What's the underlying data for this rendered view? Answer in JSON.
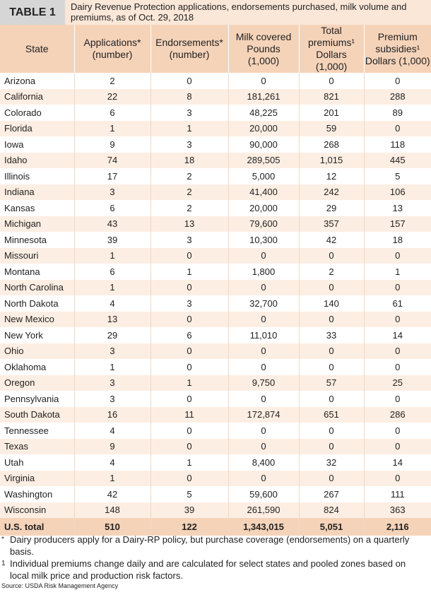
{
  "header": {
    "label": "TABLE 1",
    "title": "Dairy Revenue Protection applications, endorsements purchased, milk volume and premiums, as of Oct. 29, 2018"
  },
  "table": {
    "columns": [
      [
        "State"
      ],
      [
        "Applications*",
        "(number)"
      ],
      [
        "Endorsements*",
        "(number)"
      ],
      [
        "Milk covered",
        "Pounds",
        "(1,000)"
      ],
      [
        "Total",
        "premiums¹",
        "Dollars (1,000)"
      ],
      [
        "Premium",
        "subsidies¹",
        "Dollars (1,000)"
      ]
    ],
    "rows": [
      [
        "Arizona",
        "2",
        "0",
        "0",
        "0",
        "0"
      ],
      [
        "California",
        "22",
        "8",
        "181,261",
        "821",
        "288"
      ],
      [
        "Colorado",
        "6",
        "3",
        "48,225",
        "201",
        "89"
      ],
      [
        "Florida",
        "1",
        "1",
        "20,000",
        "59",
        "0"
      ],
      [
        "Iowa",
        "9",
        "3",
        "90,000",
        "268",
        "118"
      ],
      [
        "Idaho",
        "74",
        "18",
        "289,505",
        "1,015",
        "445"
      ],
      [
        "Illinois",
        "17",
        "2",
        "5,000",
        "12",
        "5"
      ],
      [
        "Indiana",
        "3",
        "2",
        "41,400",
        "242",
        "106"
      ],
      [
        "Kansas",
        "6",
        "2",
        "20,000",
        "29",
        "13"
      ],
      [
        "Michigan",
        "43",
        "13",
        "79,600",
        "357",
        "157"
      ],
      [
        "Minnesota",
        "39",
        "3",
        "10,300",
        "42",
        "18"
      ],
      [
        "Missouri",
        "1",
        "0",
        "0",
        "0",
        "0"
      ],
      [
        "Montana",
        "6",
        "1",
        "1,800",
        "2",
        "1"
      ],
      [
        "North Carolina",
        "1",
        "0",
        "0",
        "0",
        "0"
      ],
      [
        "North Dakota",
        "4",
        "3",
        "32,700",
        "140",
        "61"
      ],
      [
        "New Mexico",
        "13",
        "0",
        "0",
        "0",
        "0"
      ],
      [
        "New York",
        "29",
        "6",
        "11,010",
        "33",
        "14"
      ],
      [
        "Ohio",
        "3",
        "0",
        "0",
        "0",
        "0"
      ],
      [
        "Oklahoma",
        "1",
        "0",
        "0",
        "0",
        "0"
      ],
      [
        "Oregon",
        "3",
        "1",
        "9,750",
        "57",
        "25"
      ],
      [
        "Pennsylvania",
        "3",
        "0",
        "0",
        "0",
        "0"
      ],
      [
        "South Dakota",
        "16",
        "11",
        "172,874",
        "651",
        "286"
      ],
      [
        "Tennessee",
        "4",
        "0",
        "0",
        "0",
        "0"
      ],
      [
        "Texas",
        "9",
        "0",
        "0",
        "0",
        "0"
      ],
      [
        "Utah",
        "4",
        "1",
        "8,400",
        "32",
        "14"
      ],
      [
        "Virginia",
        "1",
        "0",
        "0",
        "0",
        "0"
      ],
      [
        "Washington",
        "42",
        "5",
        "59,600",
        "267",
        "111"
      ],
      [
        "Wisconsin",
        "148",
        "39",
        "261,590",
        "824",
        "363"
      ]
    ],
    "total": [
      "U.S. total",
      "510",
      "122",
      "1,343,015",
      "5,051",
      "2,116"
    ]
  },
  "notes": [
    {
      "marker": "*",
      "text": "Dairy producers apply for a Dairy-RP policy, but purchase coverage (endorsements) on a quarterly basis."
    },
    {
      "marker": "1",
      "text": "Individual premiums change daily and are calculated for select states and pooled zones based on local milk price and production risk factors."
    }
  ],
  "source": "Source: USDA Risk Management Agency"
}
